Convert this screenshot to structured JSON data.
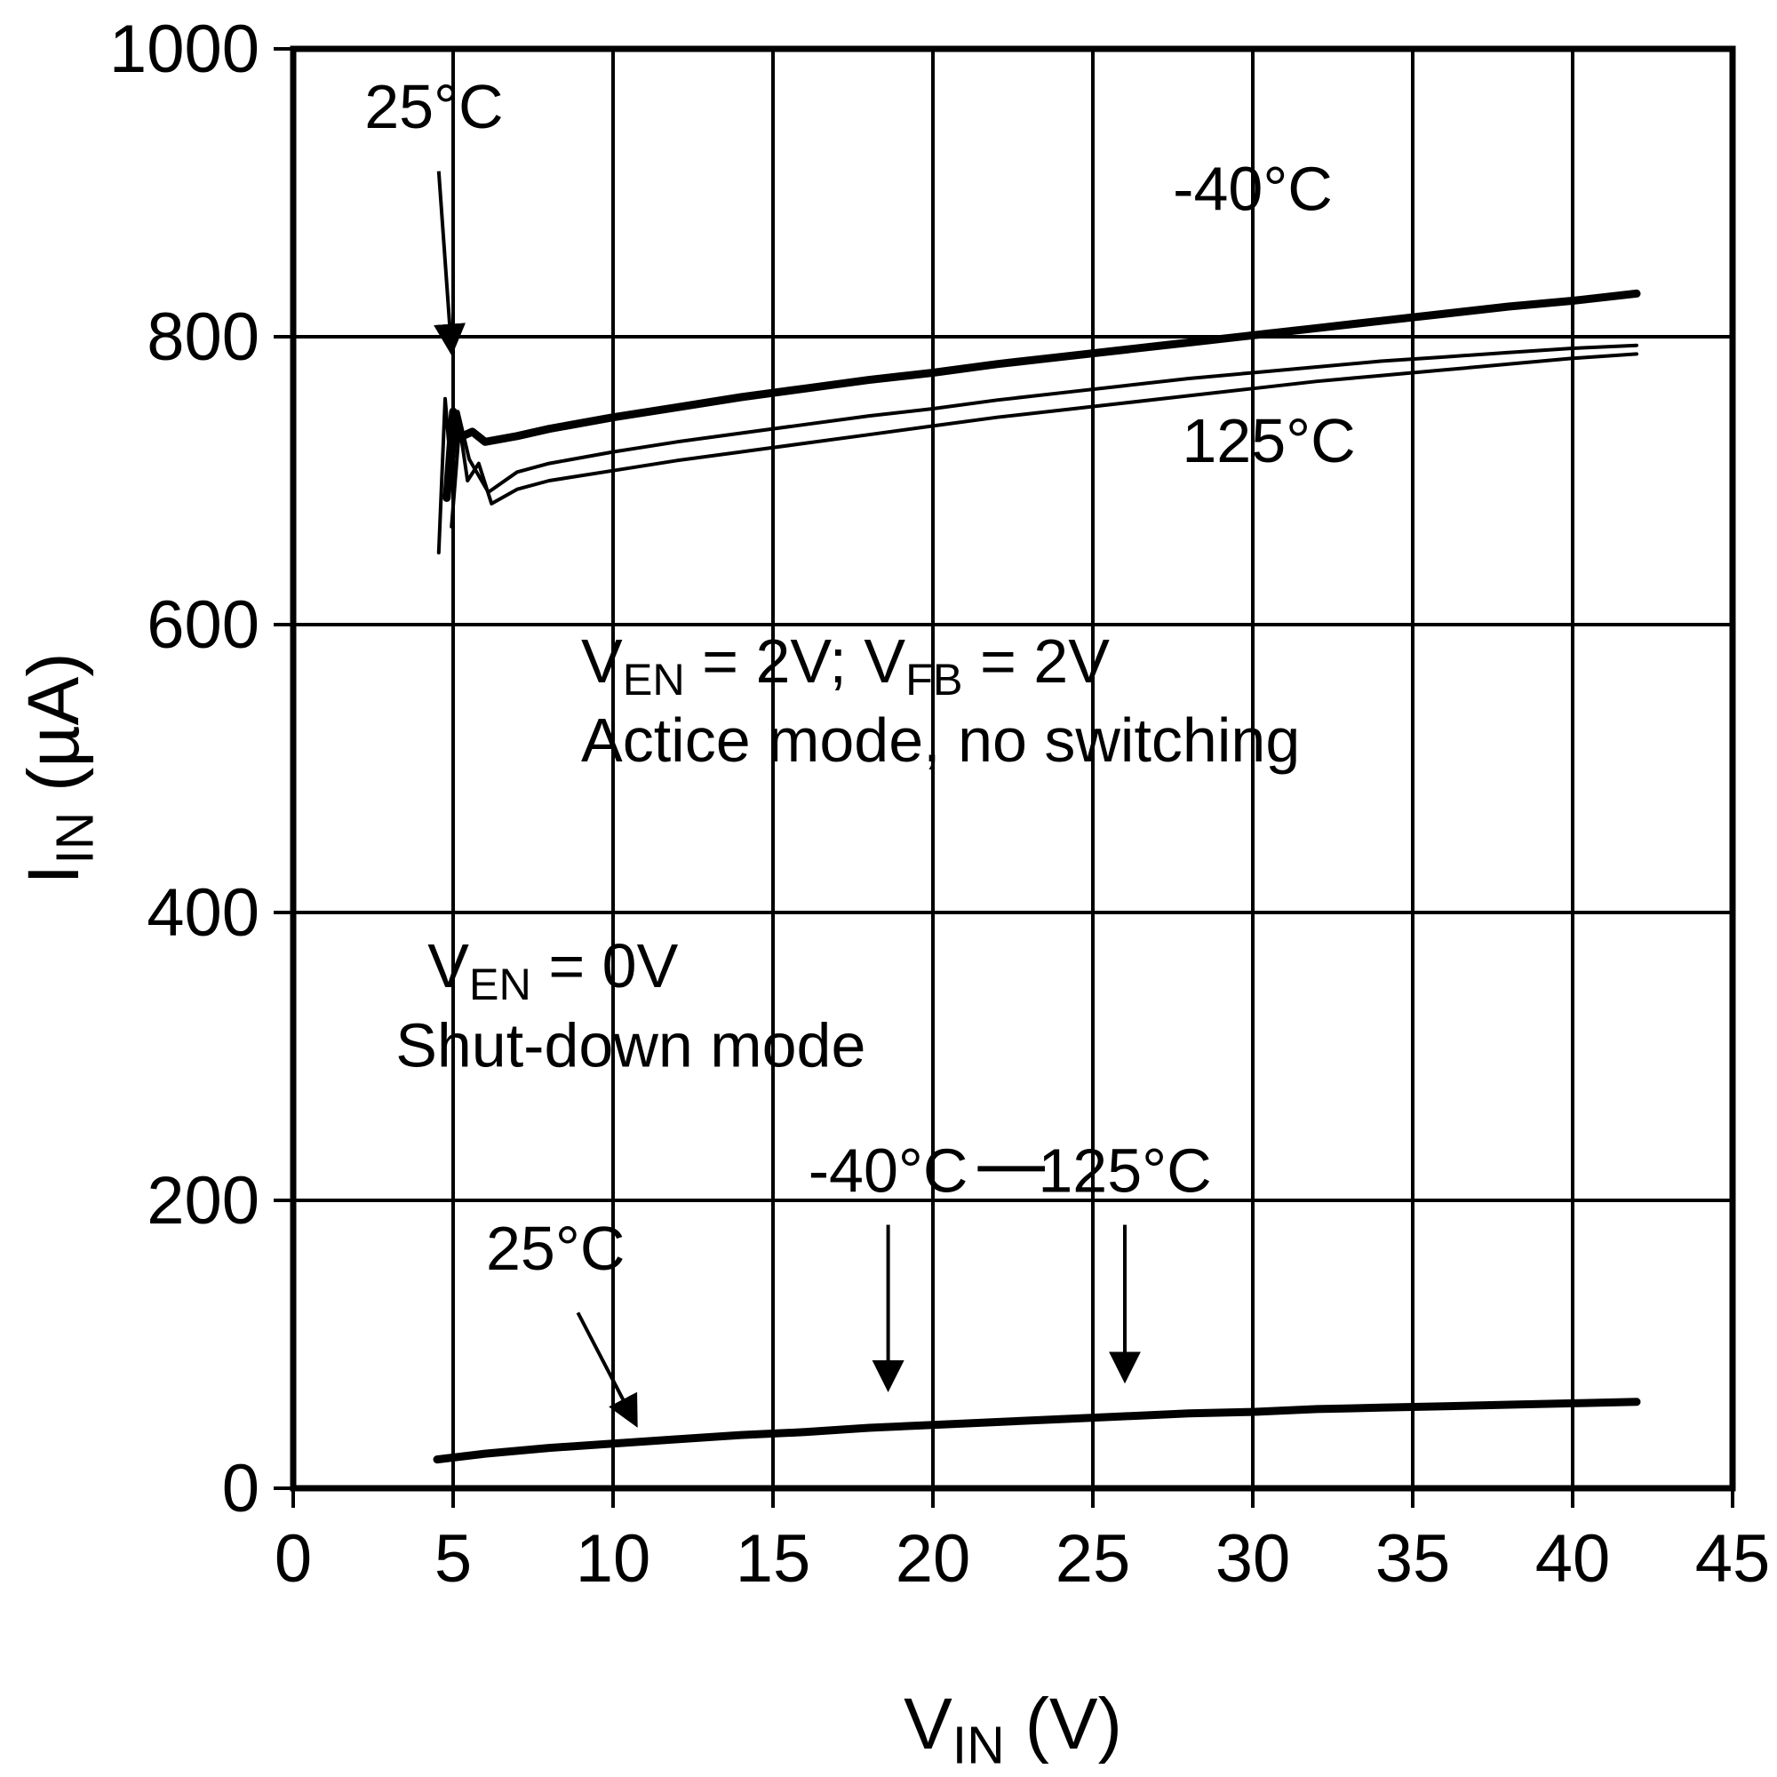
{
  "figure": {
    "background": "#ffffff",
    "ink": "#000000"
  },
  "chart_data": {
    "type": "line",
    "title": "",
    "xlabel_parts": [
      {
        "t": "V"
      },
      {
        "t": "IN",
        "sub": true
      },
      {
        "t": " (V)"
      }
    ],
    "ylabel_parts": [
      {
        "t": "I"
      },
      {
        "t": "IN",
        "sub": true
      },
      {
        "t": " (µA)"
      }
    ],
    "xlim": [
      0,
      45
    ],
    "ylim": [
      0,
      1000
    ],
    "x_ticks": [
      0,
      5,
      10,
      15,
      20,
      25,
      30,
      35,
      40,
      45
    ],
    "y_ticks": [
      0,
      200,
      400,
      600,
      800,
      1000
    ],
    "grid": true,
    "legend": "inline-annotations",
    "series": [
      {
        "name": "active-minus40c",
        "label": "-40°C",
        "mode": "Active mode, no switching",
        "thick": true,
        "points": [
          [
            4.8,
            688
          ],
          [
            5.0,
            748
          ],
          [
            5.2,
            730
          ],
          [
            5.6,
            734
          ],
          [
            6.0,
            727
          ],
          [
            7,
            731
          ],
          [
            8,
            736
          ],
          [
            10,
            744
          ],
          [
            12,
            751
          ],
          [
            14,
            758
          ],
          [
            16,
            764
          ],
          [
            18,
            770
          ],
          [
            20,
            775
          ],
          [
            22,
            781
          ],
          [
            24,
            786
          ],
          [
            26,
            791
          ],
          [
            28,
            796
          ],
          [
            30,
            801
          ],
          [
            32,
            806
          ],
          [
            34,
            811
          ],
          [
            36,
            816
          ],
          [
            38,
            821
          ],
          [
            40,
            825
          ],
          [
            42,
            830
          ]
        ]
      },
      {
        "name": "active-25c",
        "label": "25°C",
        "mode": "Active mode, no switching",
        "thick": false,
        "points": [
          [
            4.55,
            650
          ],
          [
            4.75,
            757
          ],
          [
            4.95,
            702
          ],
          [
            5.15,
            748
          ],
          [
            5.5,
            715
          ],
          [
            6.1,
            692
          ],
          [
            7,
            706
          ],
          [
            8,
            712
          ],
          [
            10,
            720
          ],
          [
            12,
            727
          ],
          [
            14,
            733
          ],
          [
            16,
            739
          ],
          [
            18,
            745
          ],
          [
            20,
            750
          ],
          [
            22,
            756
          ],
          [
            24,
            761
          ],
          [
            26,
            766
          ],
          [
            28,
            771
          ],
          [
            30,
            775
          ],
          [
            32,
            779
          ],
          [
            34,
            783
          ],
          [
            36,
            786
          ],
          [
            38,
            789
          ],
          [
            40,
            792
          ],
          [
            42,
            794
          ]
        ]
      },
      {
        "name": "active-125c",
        "label": "125°C",
        "mode": "Active mode, no switching",
        "thick": false,
        "points": [
          [
            4.95,
            668
          ],
          [
            5.2,
            738
          ],
          [
            5.45,
            700
          ],
          [
            5.8,
            712
          ],
          [
            6.2,
            684
          ],
          [
            7,
            694
          ],
          [
            8,
            700
          ],
          [
            10,
            707
          ],
          [
            12,
            714
          ],
          [
            14,
            720
          ],
          [
            16,
            726
          ],
          [
            18,
            732
          ],
          [
            20,
            738
          ],
          [
            22,
            744
          ],
          [
            24,
            749
          ],
          [
            26,
            754
          ],
          [
            28,
            759
          ],
          [
            30,
            764
          ],
          [
            32,
            769
          ],
          [
            34,
            773
          ],
          [
            36,
            777
          ],
          [
            38,
            781
          ],
          [
            40,
            785
          ],
          [
            42,
            788
          ]
        ]
      },
      {
        "name": "shutdown-all-temperatures",
        "label": "25°C / -40°C / 125°C",
        "mode": "Shut-down mode",
        "thick": true,
        "points": [
          [
            4.5,
            20
          ],
          [
            6,
            24
          ],
          [
            8,
            28
          ],
          [
            10,
            31
          ],
          [
            12,
            34
          ],
          [
            14,
            37
          ],
          [
            16,
            39
          ],
          [
            18,
            42
          ],
          [
            20,
            44
          ],
          [
            22,
            46
          ],
          [
            24,
            48
          ],
          [
            26,
            50
          ],
          [
            28,
            52
          ],
          [
            30,
            53
          ],
          [
            32,
            55
          ],
          [
            34,
            56
          ],
          [
            36,
            57
          ],
          [
            38,
            58
          ],
          [
            40,
            59
          ],
          [
            42,
            60
          ]
        ]
      }
    ],
    "annotations": [
      {
        "id": "active-25c-label",
        "parts": [
          {
            "t": "25°C"
          }
        ],
        "x": 4.4,
        "y": 945,
        "anchor": "middle",
        "arrow": [
          4.55,
          915,
          4.95,
          790
        ]
      },
      {
        "id": "active-minus40c-label",
        "parts": [
          {
            "t": "-40°C"
          }
        ],
        "x": 30,
        "y": 888,
        "anchor": "middle"
      },
      {
        "id": "active-125c-label",
        "parts": [
          {
            "t": "125°C"
          }
        ],
        "x": 30.5,
        "y": 713,
        "anchor": "middle"
      },
      {
        "id": "active-conditions-line1",
        "parts": [
          {
            "t": "V"
          },
          {
            "t": "EN",
            "sub": true
          },
          {
            "t": " = 2V; V"
          },
          {
            "t": "FB",
            "sub": true
          },
          {
            "t": " = 2V"
          }
        ],
        "x": 9,
        "y": 560,
        "anchor": "start"
      },
      {
        "id": "active-conditions-line2",
        "parts": [
          {
            "t": "Actice mode, no switching"
          }
        ],
        "x": 9,
        "y": 505,
        "anchor": "start"
      },
      {
        "id": "shutdown-conditions-line1",
        "parts": [
          {
            "t": "V"
          },
          {
            "t": "EN",
            "sub": true
          },
          {
            "t": " = 0V"
          }
        ],
        "x": 4.2,
        "y": 348,
        "anchor": "start"
      },
      {
        "id": "shutdown-conditions-line2",
        "parts": [
          {
            "t": "Shut-down mode"
          }
        ],
        "x": 3.2,
        "y": 293,
        "anchor": "start"
      },
      {
        "id": "shutdown-25c-label",
        "parts": [
          {
            "t": "25°C"
          }
        ],
        "x": 8.2,
        "y": 152,
        "anchor": "middle",
        "arrow": [
          8.9,
          122,
          10.7,
          45
        ]
      },
      {
        "id": "shutdown-minus40c-label",
        "parts": [
          {
            "t": "-40°C"
          }
        ],
        "x": 18.6,
        "y": 206,
        "anchor": "middle",
        "arrow": [
          18.6,
          183,
          18.6,
          70
        ]
      },
      {
        "id": "shutdown-125c-label",
        "parts": [
          {
            "t": "125°C"
          }
        ],
        "x": 26,
        "y": 206,
        "anchor": "middle",
        "arrow": [
          26,
          183,
          26,
          76
        ]
      },
      {
        "id": "shutdown-label-connector",
        "dash": [
          21.4,
          222,
          23.5,
          222
        ]
      }
    ]
  }
}
